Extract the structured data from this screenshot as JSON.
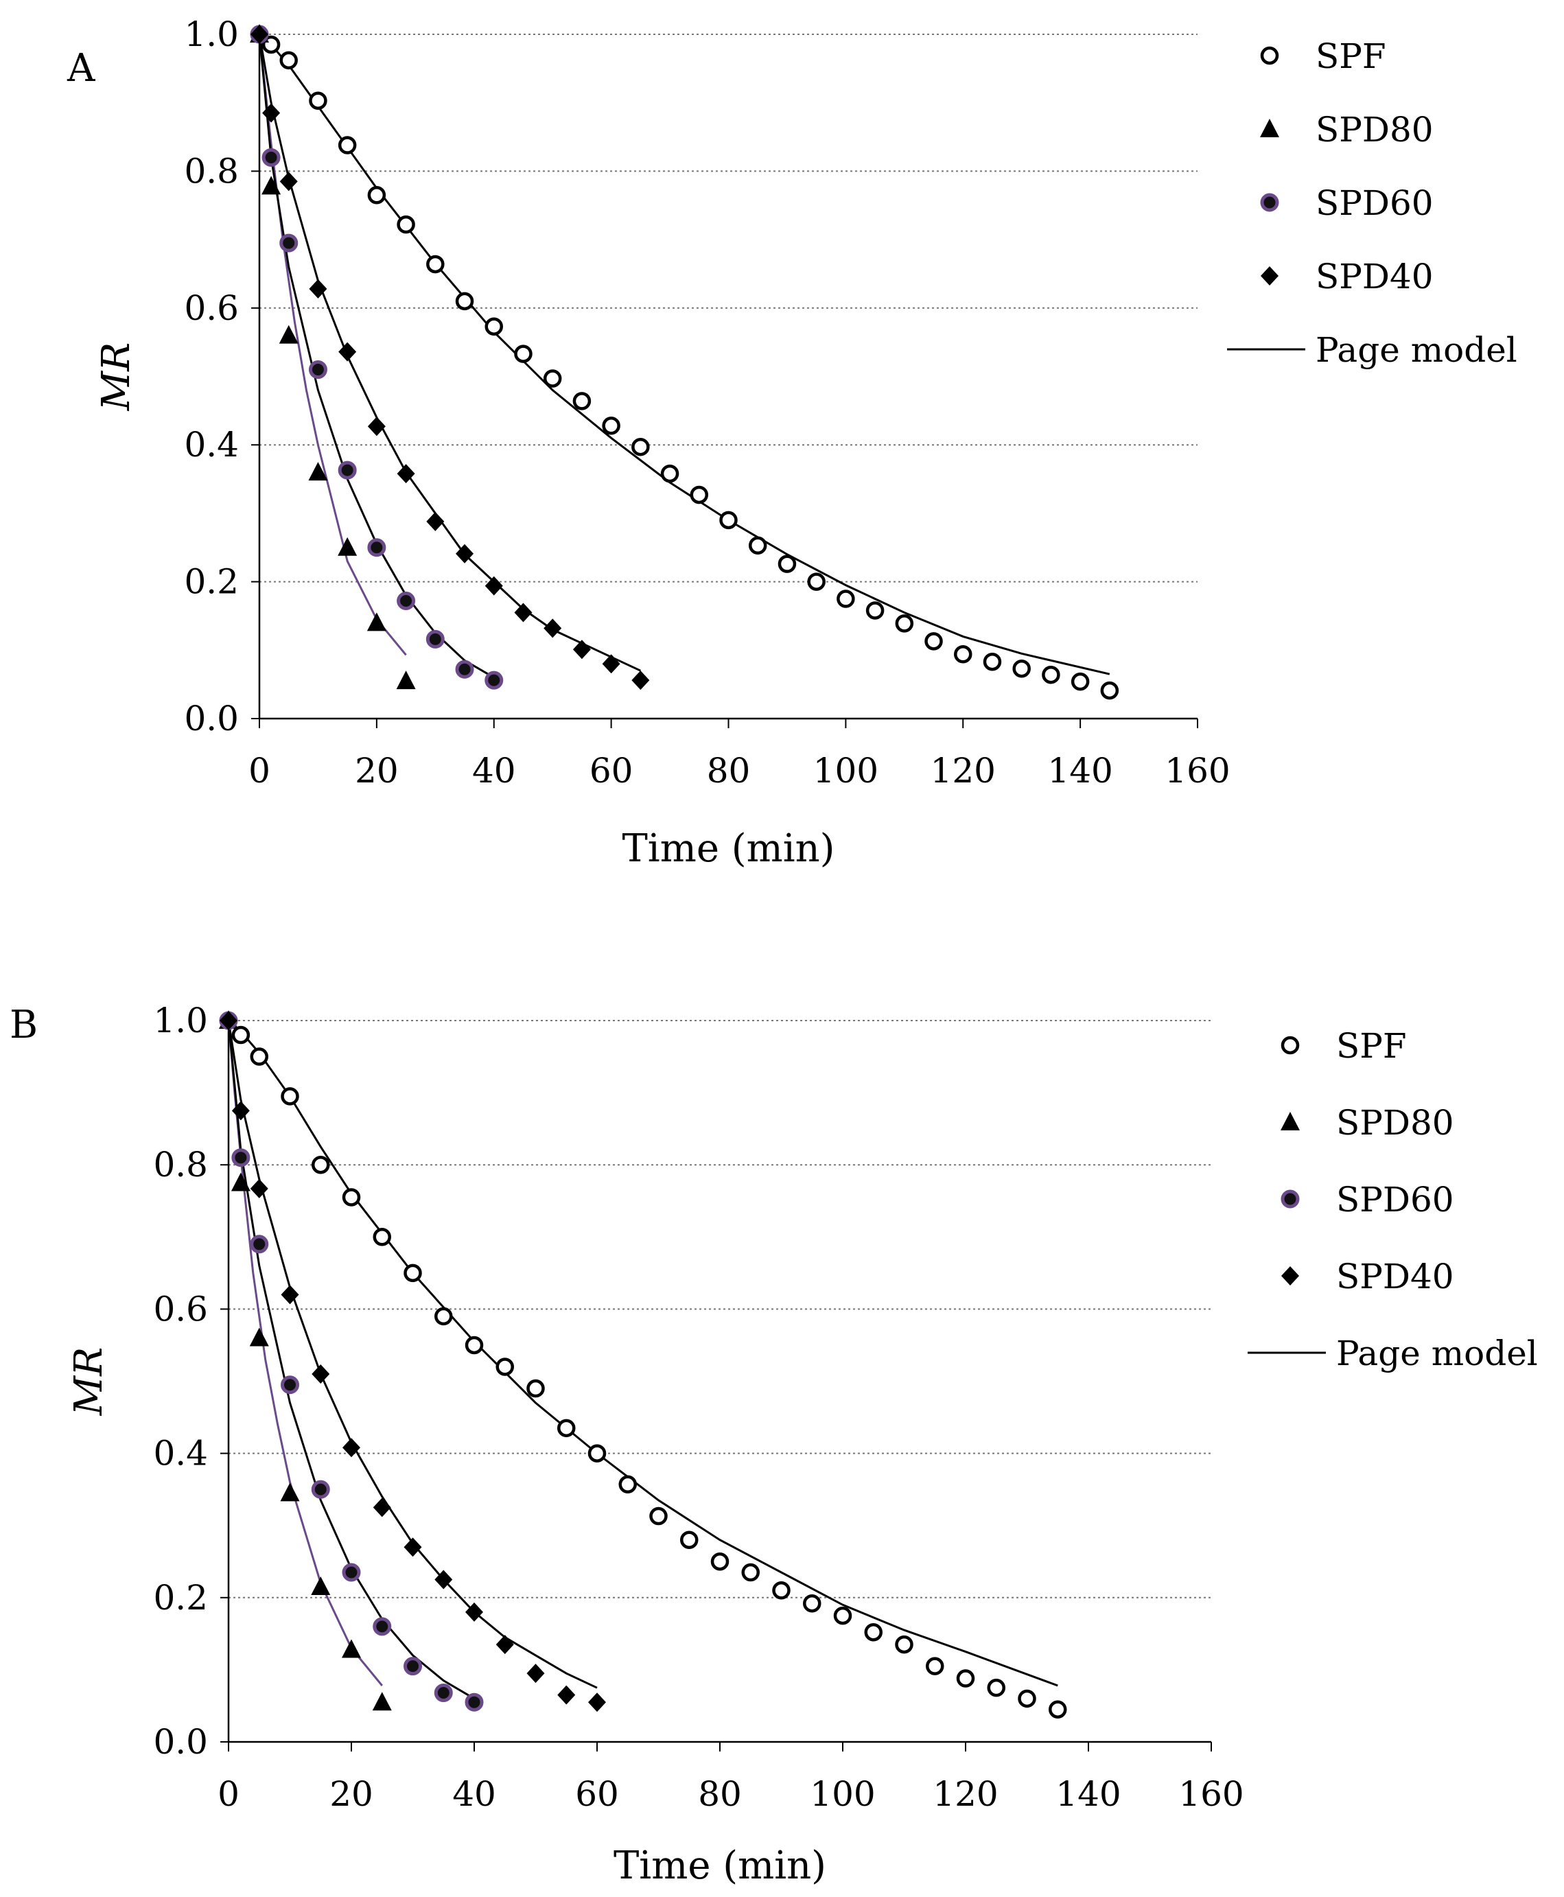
{
  "chart_data": [
    {
      "type": "scatter",
      "panel_label": "A",
      "xlabel": "Time (min)",
      "ylabel": "MR",
      "xlim": [
        0,
        160
      ],
      "ylim": [
        0.0,
        1.0
      ],
      "xticks": [
        "0",
        "20",
        "40",
        "60",
        "80",
        "100",
        "120",
        "140",
        "160"
      ],
      "yticks": [
        "0.0",
        "0.2",
        "0.4",
        "0.6",
        "0.8",
        "1.0"
      ],
      "grid": "horizontal dotted",
      "legend_position": "top-right",
      "legend_model_label": "Page model",
      "series": [
        {
          "name": "SPF",
          "marker": "open-circle",
          "x": [
            0,
            2,
            5,
            10,
            15,
            20,
            25,
            30,
            35,
            40,
            45,
            50,
            55,
            60,
            65,
            70,
            75,
            80,
            85,
            90,
            95,
            100,
            105,
            110,
            115,
            120,
            125,
            130,
            135,
            140,
            145
          ],
          "y": [
            1.0,
            0.985,
            0.962,
            0.903,
            0.838,
            0.765,
            0.722,
            0.664,
            0.61,
            0.573,
            0.533,
            0.497,
            0.464,
            0.428,
            0.397,
            0.358,
            0.327,
            0.29,
            0.253,
            0.226,
            0.2,
            0.175,
            0.158,
            0.139,
            0.113,
            0.094,
            0.083,
            0.073,
            0.064,
            0.054,
            0.041
          ],
          "model_x": [
            0,
            2,
            5,
            10,
            15,
            20,
            30,
            40,
            50,
            60,
            70,
            80,
            90,
            100,
            110,
            120,
            130,
            145
          ],
          "model_y": [
            1.0,
            0.985,
            0.955,
            0.895,
            0.835,
            0.775,
            0.665,
            0.565,
            0.48,
            0.41,
            0.345,
            0.29,
            0.24,
            0.195,
            0.155,
            0.12,
            0.095,
            0.065
          ]
        },
        {
          "name": "SPD80",
          "marker": "filled-triangle",
          "x": [
            0,
            2,
            5,
            10,
            15,
            20,
            25
          ],
          "y": [
            1.0,
            0.778,
            0.56,
            0.36,
            0.25,
            0.14,
            0.055
          ],
          "model_x": [
            0,
            1,
            2,
            4,
            6,
            8,
            10,
            15,
            20,
            25
          ],
          "model_y": [
            1.0,
            0.92,
            0.84,
            0.7,
            0.58,
            0.48,
            0.4,
            0.23,
            0.145,
            0.093
          ],
          "model_color": "#6b4a8a"
        },
        {
          "name": "SPD60",
          "marker": "filled-circle-purple-ring",
          "x": [
            0,
            2,
            5,
            10,
            15,
            20,
            25,
            30,
            35,
            40
          ],
          "y": [
            1.0,
            0.82,
            0.695,
            0.51,
            0.363,
            0.25,
            0.172,
            0.116,
            0.072,
            0.056
          ],
          "model_x": [
            0,
            2,
            5,
            10,
            15,
            20,
            25,
            30,
            35,
            40
          ],
          "model_y": [
            1.0,
            0.82,
            0.66,
            0.48,
            0.35,
            0.255,
            0.18,
            0.125,
            0.085,
            0.06
          ]
        },
        {
          "name": "SPD40",
          "marker": "filled-diamond",
          "x": [
            0,
            2,
            5,
            10,
            15,
            20,
            25,
            30,
            35,
            40,
            45,
            50,
            55,
            60,
            65
          ],
          "y": [
            1.0,
            0.885,
            0.785,
            0.628,
            0.536,
            0.427,
            0.358,
            0.288,
            0.241,
            0.194,
            0.155,
            0.132,
            0.101,
            0.08,
            0.056
          ],
          "model_x": [
            0,
            2,
            5,
            10,
            15,
            20,
            25,
            30,
            35,
            40,
            45,
            50,
            55,
            60,
            65
          ],
          "model_y": [
            1.0,
            0.9,
            0.79,
            0.64,
            0.53,
            0.44,
            0.36,
            0.3,
            0.24,
            0.2,
            0.16,
            0.13,
            0.11,
            0.09,
            0.07
          ]
        }
      ]
    },
    {
      "type": "scatter",
      "panel_label": "B",
      "xlabel": "Time (min)",
      "ylabel": "MR",
      "xlim": [
        0,
        160
      ],
      "ylim": [
        0.0,
        1.0
      ],
      "xticks": [
        "0",
        "20",
        "40",
        "60",
        "80",
        "100",
        "120",
        "140",
        "160"
      ],
      "yticks": [
        "0.0",
        "0.2",
        "0.4",
        "0.6",
        "0.8",
        "1.0"
      ],
      "grid": "horizontal dotted",
      "legend_position": "top-right",
      "legend_model_label": "Page model",
      "series": [
        {
          "name": "SPF",
          "marker": "open-circle",
          "x": [
            0,
            2,
            5,
            10,
            15,
            20,
            25,
            30,
            35,
            40,
            45,
            50,
            55,
            60,
            65,
            70,
            75,
            80,
            85,
            90,
            95,
            100,
            105,
            110,
            115,
            120,
            125,
            130,
            135
          ],
          "y": [
            1.0,
            0.98,
            0.95,
            0.895,
            0.8,
            0.755,
            0.7,
            0.65,
            0.59,
            0.55,
            0.52,
            0.49,
            0.435,
            0.4,
            0.357,
            0.313,
            0.28,
            0.25,
            0.235,
            0.21,
            0.192,
            0.175,
            0.152,
            0.135,
            0.105,
            0.088,
            0.075,
            0.06,
            0.045
          ],
          "model_x": [
            0,
            2,
            5,
            10,
            15,
            20,
            30,
            40,
            50,
            60,
            70,
            80,
            90,
            100,
            110,
            120,
            135
          ],
          "model_y": [
            1.0,
            0.985,
            0.955,
            0.895,
            0.825,
            0.76,
            0.65,
            0.555,
            0.47,
            0.4,
            0.335,
            0.28,
            0.235,
            0.19,
            0.155,
            0.125,
            0.078
          ]
        },
        {
          "name": "SPD80",
          "marker": "filled-triangle",
          "x": [
            0,
            2,
            5,
            10,
            15,
            20,
            25
          ],
          "y": [
            1.0,
            0.775,
            0.56,
            0.345,
            0.215,
            0.128,
            0.055
          ],
          "model_x": [
            0,
            1,
            2,
            4,
            6,
            8,
            10,
            15,
            20,
            25
          ],
          "model_y": [
            1.0,
            0.9,
            0.81,
            0.65,
            0.53,
            0.44,
            0.36,
            0.22,
            0.13,
            0.078
          ],
          "model_color": "#6b4a8a"
        },
        {
          "name": "SPD60",
          "marker": "filled-circle-purple-ring",
          "x": [
            0,
            2,
            5,
            10,
            15,
            20,
            25,
            30,
            35,
            40
          ],
          "y": [
            1.0,
            0.81,
            0.69,
            0.495,
            0.35,
            0.235,
            0.16,
            0.105,
            0.068,
            0.055
          ],
          "model_x": [
            0,
            2,
            5,
            10,
            15,
            20,
            25,
            30,
            35,
            40
          ],
          "model_y": [
            1.0,
            0.82,
            0.66,
            0.47,
            0.335,
            0.24,
            0.17,
            0.12,
            0.085,
            0.06
          ]
        },
        {
          "name": "SPD40",
          "marker": "filled-diamond",
          "x": [
            0,
            2,
            5,
            10,
            15,
            20,
            25,
            30,
            35,
            40,
            45,
            50,
            55,
            60
          ],
          "y": [
            1.0,
            0.875,
            0.767,
            0.62,
            0.51,
            0.408,
            0.325,
            0.27,
            0.225,
            0.18,
            0.135,
            0.095,
            0.065,
            0.055
          ],
          "model_x": [
            0,
            2,
            5,
            10,
            15,
            20,
            25,
            30,
            35,
            40,
            45,
            50,
            55,
            60
          ],
          "model_y": [
            1.0,
            0.89,
            0.78,
            0.63,
            0.51,
            0.415,
            0.34,
            0.275,
            0.225,
            0.18,
            0.145,
            0.12,
            0.095,
            0.075
          ]
        }
      ]
    }
  ]
}
